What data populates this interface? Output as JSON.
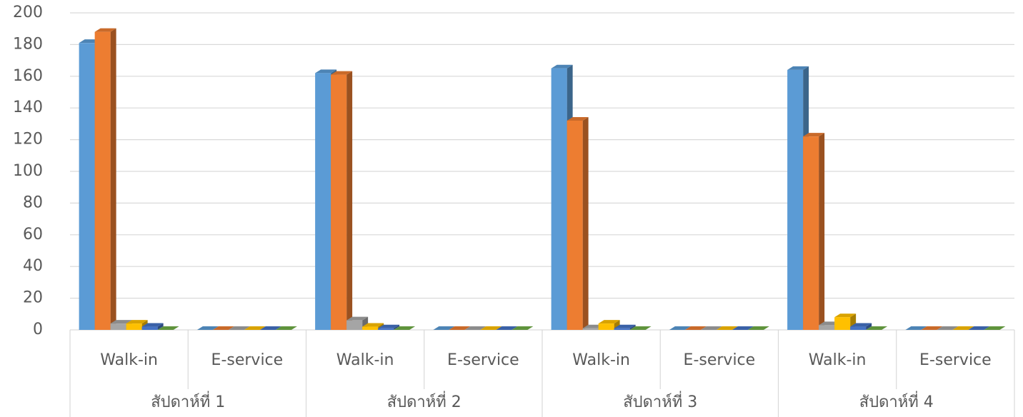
{
  "chart_data": {
    "type": "bar3d",
    "categories": [
      "Walk-in",
      "E-service",
      "Walk-in",
      "E-service",
      "Walk-in",
      "E-service",
      "Walk-in",
      "E-service"
    ],
    "groups": [
      "สัปดาห์ที่ 1",
      "สัปดาห์ที่ 2",
      "สัปดาห์ที่ 3",
      "สัปดาห์ที่ 4"
    ],
    "series": [
      {
        "color": "#5b9bd5",
        "values": [
          181,
          0,
          162,
          0,
          165,
          0,
          164,
          0
        ]
      },
      {
        "color": "#ed7d31",
        "values": [
          188,
          0,
          161,
          0,
          132,
          0,
          122,
          0
        ]
      },
      {
        "color": "#a5a5a5",
        "values": [
          4,
          0,
          6,
          0,
          1,
          0,
          3,
          0
        ]
      },
      {
        "color": "#ffc000",
        "values": [
          4,
          0,
          2,
          0,
          4,
          0,
          8,
          0
        ]
      },
      {
        "color": "#4472c4",
        "values": [
          2,
          0,
          1,
          0,
          1,
          0,
          2,
          0
        ]
      },
      {
        "color": "#70ad47",
        "values": [
          0,
          0,
          0,
          0,
          0,
          0,
          0,
          0
        ]
      }
    ],
    "ylim": [
      0,
      200
    ],
    "yticks": [
      0,
      20,
      40,
      60,
      80,
      100,
      120,
      140,
      160,
      180,
      200
    ],
    "grid": true
  }
}
